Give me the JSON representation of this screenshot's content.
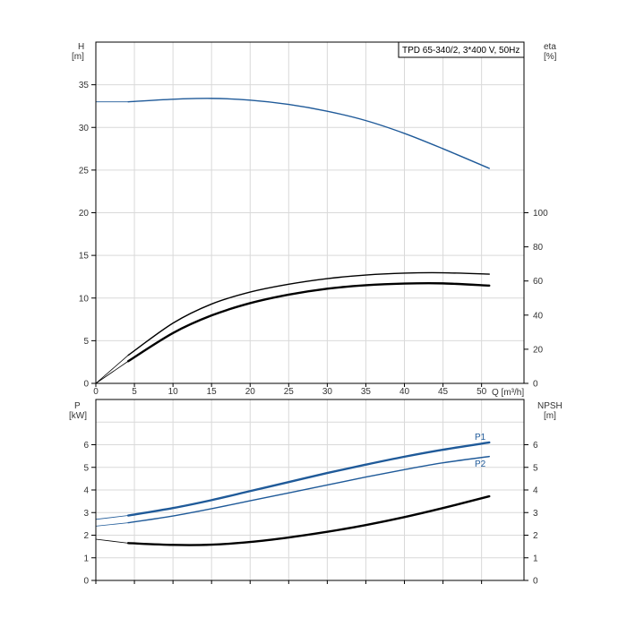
{
  "chart_data": [
    {
      "type": "line",
      "title": "TPD 65-340/2, 3*400 V, 50Hz",
      "left_axis": {
        "label": "H",
        "unit": "[m]",
        "ticks": [
          0,
          5,
          10,
          15,
          20,
          25,
          30,
          35
        ],
        "lim": [
          0,
          40
        ]
      },
      "right_axis": {
        "label": "eta",
        "unit": "[%]",
        "ticks": [
          0,
          20,
          40,
          60,
          80,
          100
        ],
        "lim": [
          0,
          200
        ]
      },
      "x_axis": {
        "label": "Q [m³/h]",
        "ticks": [
          0,
          5,
          10,
          15,
          20,
          25,
          30,
          35,
          40,
          45,
          50
        ],
        "lim": [
          0,
          55.5
        ]
      },
      "grid": true,
      "series": [
        {
          "name": "",
          "axis": "left",
          "color": "#1f5a99",
          "x": [
            4.2,
            10,
            15,
            20,
            25,
            30,
            35,
            40,
            45,
            51
          ],
          "values": [
            33.0,
            33.3,
            33.4,
            33.2,
            32.7,
            31.9,
            30.8,
            29.3,
            27.5,
            25.2
          ],
          "extrap_x": [
            0,
            4.2
          ],
          "extrap_values": [
            33.0,
            33.0
          ]
        },
        {
          "name": "",
          "axis": "right",
          "color": "#000000",
          "x": [
            4.2,
            10,
            15,
            20,
            25,
            30,
            35,
            40,
            45,
            51
          ],
          "values": [
            16.5,
            35.3,
            46.5,
            53.5,
            58.1,
            61.4,
            63.5,
            64.6,
            64.8,
            64.0
          ],
          "extrap_x": [
            0,
            4.2
          ],
          "extrap_values": [
            0,
            16.5
          ]
        },
        {
          "name": "",
          "axis": "right",
          "color": "#000000",
          "bold": true,
          "x": [
            4.2,
            10,
            15,
            20,
            25,
            30,
            35,
            40,
            45,
            51
          ],
          "values": [
            13.0,
            29.5,
            39.8,
            47.0,
            52.0,
            55.5,
            57.5,
            58.5,
            58.6,
            57.3
          ],
          "extrap_x": [
            0,
            4.2
          ],
          "extrap_values": [
            0,
            13.0
          ]
        }
      ]
    },
    {
      "type": "line",
      "left_axis": {
        "label": "P",
        "unit": "[kW]",
        "ticks": [
          0,
          1,
          2,
          3,
          4,
          5,
          6
        ],
        "lim": [
          0,
          8
        ]
      },
      "right_axis": {
        "label": "NPSH",
        "unit": "[m]",
        "ticks": [
          0,
          1,
          2,
          3,
          4,
          5,
          6
        ],
        "lim": [
          0,
          8
        ]
      },
      "x_lim": [
        0,
        55.5
      ],
      "grid": true,
      "series": [
        {
          "name": "P1",
          "axis": "left",
          "color": "#1f5a99",
          "bold": true,
          "x": [
            4.2,
            10,
            15,
            20,
            25,
            30,
            35,
            40,
            45,
            51
          ],
          "values": [
            2.87,
            3.2,
            3.55,
            3.95,
            4.35,
            4.75,
            5.12,
            5.47,
            5.78,
            6.1
          ],
          "extrap_x": [
            0,
            4.2
          ],
          "extrap_values": [
            2.7,
            2.87
          ]
        },
        {
          "name": "P2",
          "axis": "left",
          "color": "#1f5a99",
          "x": [
            4.2,
            10,
            15,
            20,
            25,
            30,
            35,
            40,
            45,
            51
          ],
          "values": [
            2.55,
            2.85,
            3.17,
            3.52,
            3.87,
            4.22,
            4.57,
            4.9,
            5.2,
            5.48
          ],
          "extrap_x": [
            0,
            4.2
          ],
          "extrap_values": [
            2.4,
            2.55
          ]
        },
        {
          "name": "",
          "axis": "right",
          "color": "#000000",
          "bold": true,
          "x": [
            4.2,
            10,
            15,
            20,
            25,
            30,
            35,
            40,
            45,
            51
          ],
          "values": [
            1.65,
            1.57,
            1.58,
            1.7,
            1.9,
            2.15,
            2.45,
            2.8,
            3.2,
            3.72
          ],
          "extrap_x": [
            0,
            4.2
          ],
          "extrap_values": [
            1.82,
            1.65
          ]
        }
      ]
    }
  ]
}
